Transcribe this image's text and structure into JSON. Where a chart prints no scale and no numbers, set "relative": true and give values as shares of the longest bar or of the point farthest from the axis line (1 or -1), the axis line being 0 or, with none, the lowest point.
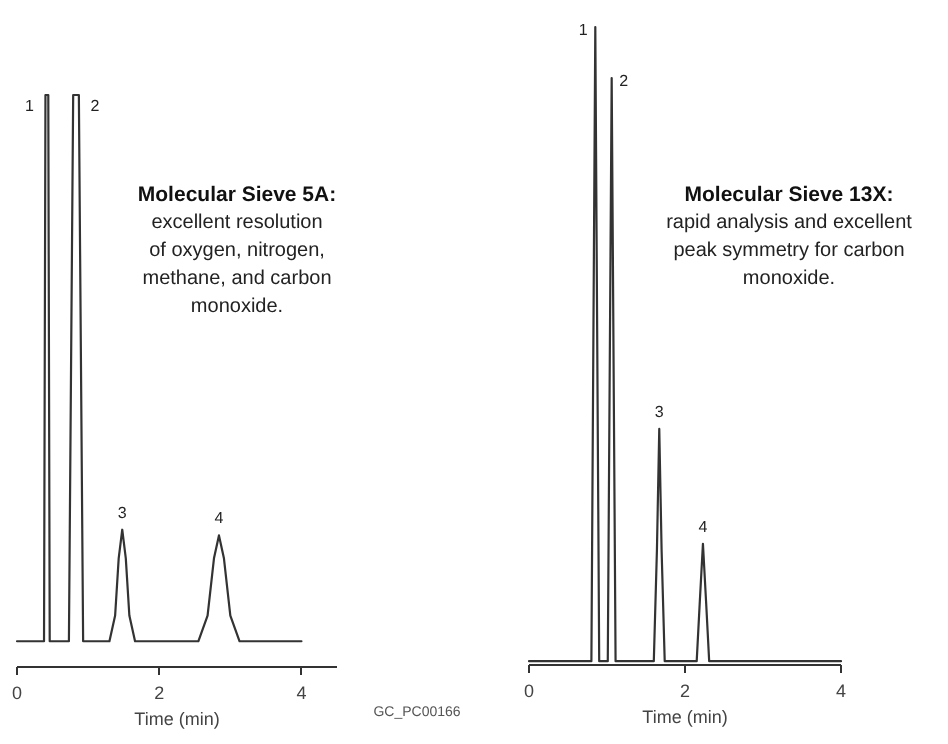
{
  "chart_data": [
    {
      "type": "line",
      "title": "Molecular Sieve 5A:",
      "subtitle": "excellent resolution of oxygen, nitrogen, methane, and carbon monoxide.",
      "xlabel": "Time (min)",
      "relative": true,
      "xlim": [
        0,
        4.5
      ],
      "xticks": [
        0,
        2,
        4
      ],
      "grid": false,
      "marker": "none",
      "series": [
        {
          "color": "#333333",
          "x": [
            0,
            0.38,
            0.4,
            0.44,
            0.46,
            0.73,
            0.79,
            0.87,
            0.93,
            1.3,
            1.38,
            1.43,
            1.48,
            1.53,
            1.58,
            1.66,
            2.55,
            2.68,
            2.77,
            2.84,
            2.91,
            3.0,
            3.13,
            4.0
          ],
          "values": [
            0.045,
            0.045,
            1,
            1,
            0.045,
            0.045,
            1,
            1,
            0.045,
            0.045,
            0.09,
            0.19,
            0.24,
            0.19,
            0.09,
            0.045,
            0.045,
            0.09,
            0.19,
            0.23,
            0.19,
            0.09,
            0.045,
            0.045
          ]
        }
      ],
      "annotations": [
        {
          "text": "1",
          "x": 0.4,
          "y": 1
        },
        {
          "text": "2",
          "x": 0.87,
          "y": 1
        },
        {
          "text": "3",
          "x": 1.48,
          "y": 0.24
        },
        {
          "text": "4",
          "x": 2.84,
          "y": 0.23
        },
        "GC_PC00166"
      ]
    },
    {
      "type": "line",
      "title": "Molecular Sieve 13X:",
      "subtitle": "rapid analysis and excellent peak symmetry for carbon monoxide.",
      "xlabel": "Time (min)",
      "relative": true,
      "xlim": [
        0,
        4
      ],
      "xticks": [
        0,
        2,
        4
      ],
      "grid": false,
      "marker": "none",
      "series": [
        {
          "color": "#333333",
          "x": [
            0,
            0.8,
            0.85,
            0.9,
            1.01,
            1.06,
            1.11,
            1.6,
            1.64,
            1.67,
            1.7,
            1.74,
            2.15,
            2.19,
            2.23,
            2.27,
            2.31,
            4.0
          ],
          "values": [
            0.006,
            0.006,
            1,
            0.006,
            0.006,
            0.92,
            0.006,
            0.006,
            0.18,
            0.37,
            0.18,
            0.006,
            0.006,
            0.1,
            0.19,
            0.1,
            0.006,
            0.006
          ]
        }
      ],
      "annotations": [
        {
          "text": "1",
          "x": 0.85,
          "y": 1
        },
        {
          "text": "2",
          "x": 1.06,
          "y": 0.92
        },
        {
          "text": "3",
          "x": 1.67,
          "y": 0.37
        },
        {
          "text": "4",
          "x": 2.23,
          "y": 0.19
        }
      ]
    }
  ]
}
